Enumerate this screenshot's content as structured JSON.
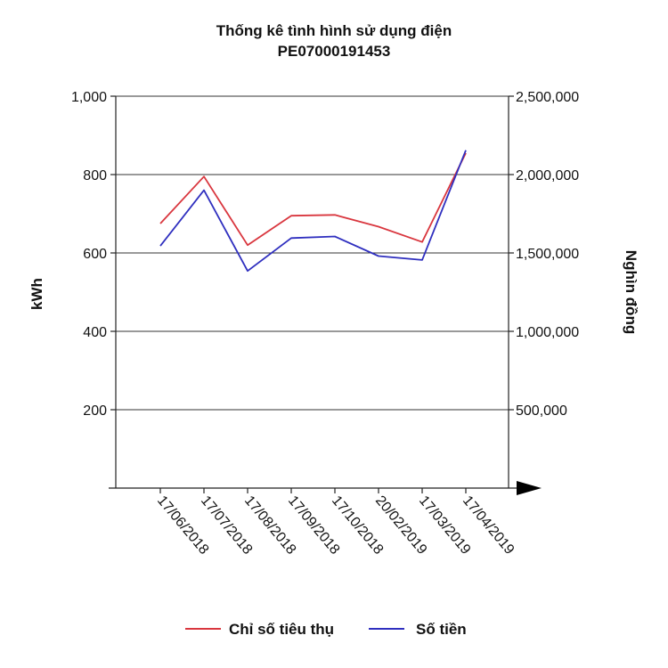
{
  "chart_data": {
    "type": "line",
    "title": "Thống kê tình hình sử dụng điện",
    "subtitle": "PE07000191453",
    "ylabel_left": "kWh",
    "ylabel_right": "Nghìn đồng",
    "categories": [
      "17/06/2018",
      "17/07/2018",
      "17/08/2018",
      "17/09/2018",
      "17/10/2018",
      "20/02/2019",
      "17/03/2019",
      "17/04/2019"
    ],
    "y_left": {
      "min": 0,
      "max": 1000,
      "ticks": [
        200,
        400,
        600,
        800,
        1000
      ],
      "tick_labels": [
        "200",
        "400",
        "600",
        "800",
        "1,000"
      ]
    },
    "y_right": {
      "min": 0,
      "max": 2500000,
      "ticks": [
        500000,
        1000000,
        1500000,
        2000000,
        2500000
      ],
      "tick_labels": [
        "500,000",
        "1,000,000",
        "1,500,000",
        "2,000,000",
        "2,500,000"
      ]
    },
    "series": [
      {
        "name": "Chỉ số tiêu thụ",
        "axis": "left",
        "color": "#d9363e",
        "values": [
          675,
          795,
          620,
          695,
          697,
          667,
          628,
          855
        ]
      },
      {
        "name": "Số tiền",
        "axis": "right",
        "color": "#2f2fbf",
        "values": [
          1545000,
          1900000,
          1385000,
          1595000,
          1605000,
          1480000,
          1455000,
          2155000
        ]
      }
    ],
    "grid": true,
    "legend_position": "bottom"
  }
}
